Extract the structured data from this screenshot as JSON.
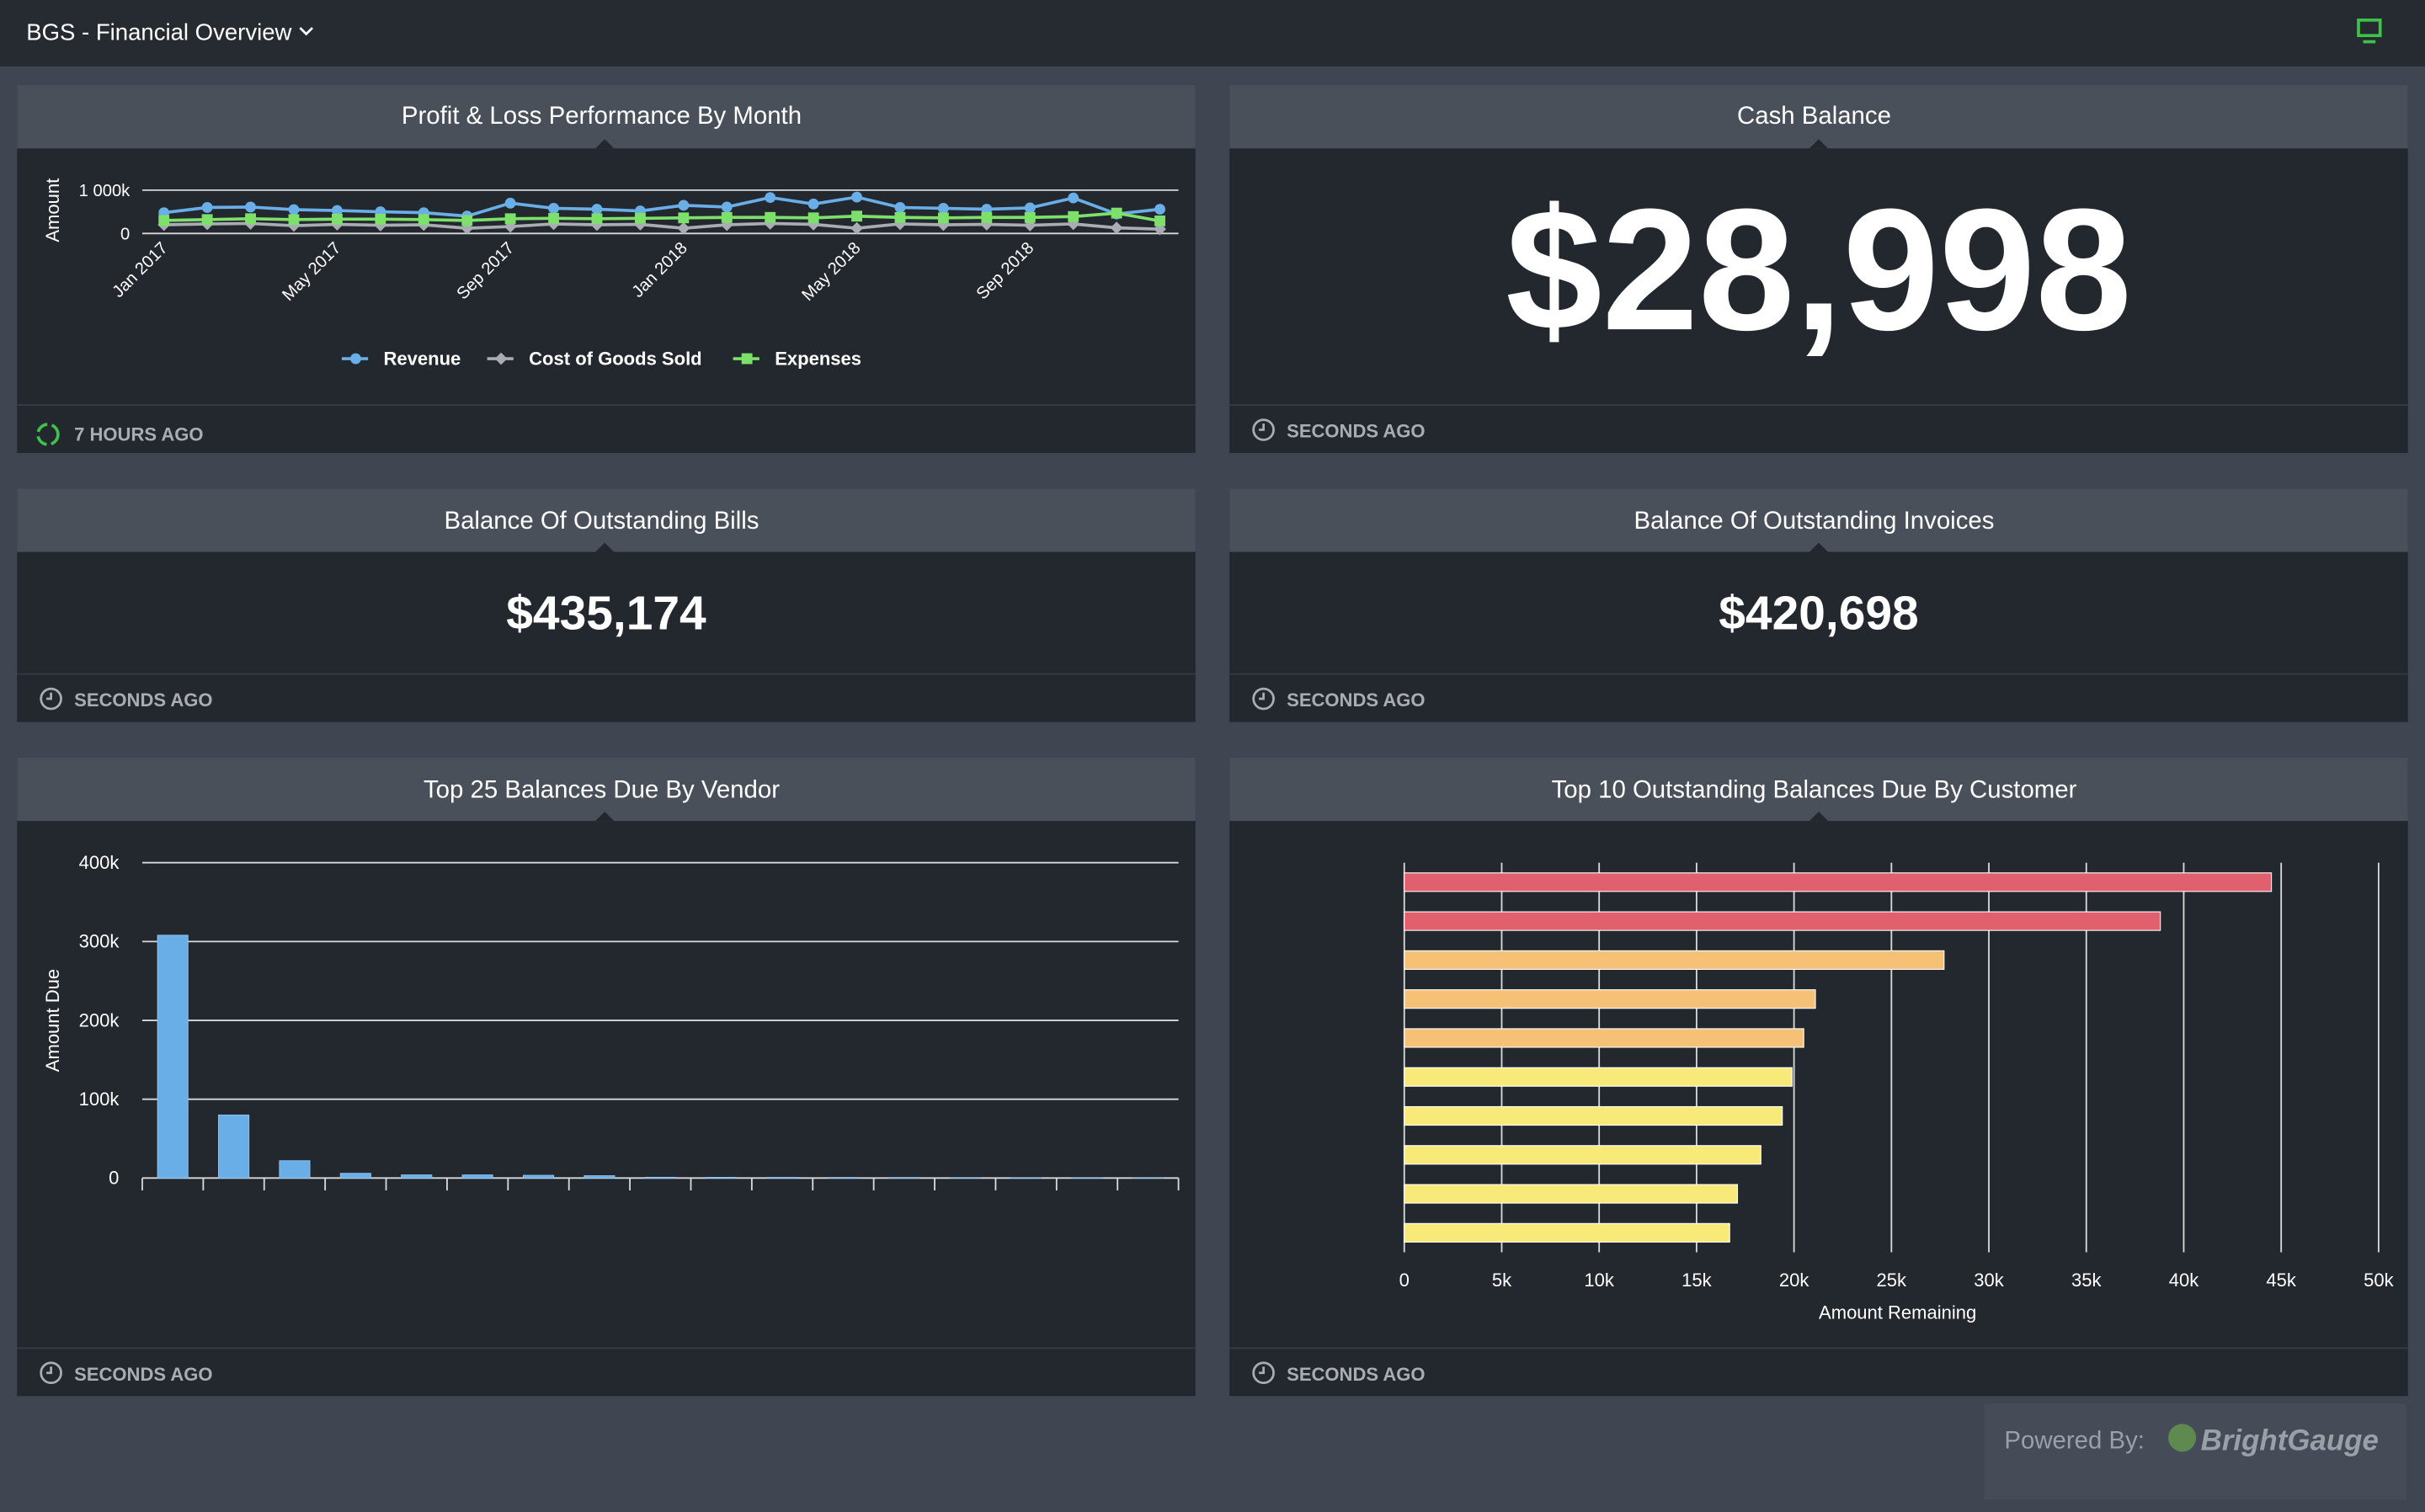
{
  "header": {
    "title": "BGS - Financial Overview"
  },
  "chart_data": [
    {
      "type": "line",
      "title": "Profit & Loss Performance By Month",
      "ylabel": "Amount",
      "categories": [
        "Jan 2017",
        null,
        null,
        null,
        "May 2017",
        null,
        null,
        null,
        "Sep 2017",
        null,
        null,
        null,
        "Jan 2018",
        null,
        null,
        null,
        "May 2018",
        null,
        null,
        null,
        "Sep 2018",
        null,
        null,
        null
      ],
      "series": [
        {
          "name": "Revenue",
          "color": "#6aaee8",
          "marker": "circle",
          "values": [
            480000,
            600000,
            610000,
            550000,
            530000,
            500000,
            480000,
            400000,
            700000,
            580000,
            560000,
            520000,
            650000,
            610000,
            830000,
            680000,
            840000,
            600000,
            580000,
            560000,
            590000,
            820000,
            450000,
            560000
          ]
        },
        {
          "name": "Cost of Goods Sold",
          "color": "#a9adb3",
          "marker": "diamond",
          "values": [
            200000,
            220000,
            230000,
            180000,
            210000,
            190000,
            200000,
            120000,
            160000,
            220000,
            200000,
            210000,
            120000,
            200000,
            230000,
            210000,
            120000,
            220000,
            200000,
            210000,
            190000,
            220000,
            130000,
            100000
          ]
        },
        {
          "name": "Expenses",
          "color": "#7de06a",
          "marker": "square",
          "values": [
            300000,
            320000,
            340000,
            320000,
            330000,
            330000,
            320000,
            300000,
            340000,
            350000,
            340000,
            350000,
            360000,
            370000,
            370000,
            360000,
            400000,
            370000,
            360000,
            370000,
            370000,
            390000,
            470000,
            290000
          ]
        }
      ],
      "ylim": [
        0,
        1000000
      ],
      "yticks": [
        0,
        {
          "value": 1000000,
          "label": "1 000k"
        }
      ],
      "grid": true,
      "legend": "bottom",
      "updated": "7 HOURS AGO"
    },
    {
      "type": "bar",
      "title": "Top 25 Balances Due By Vendor",
      "ylabel": "Amount Due",
      "categories": [
        null,
        null,
        null,
        null,
        null,
        null,
        null,
        null,
        null,
        null,
        null,
        null,
        null,
        null,
        null,
        null,
        null
      ],
      "values": [
        308000,
        80000,
        22000,
        6000,
        4000,
        4000,
        3500,
        3000,
        1000,
        900,
        800,
        700,
        600,
        500,
        400,
        300,
        200
      ],
      "color": "#6aaee8",
      "ylim": [
        0,
        400000
      ],
      "yticks": [
        0,
        {
          "value": 100000,
          "label": "100k"
        },
        {
          "value": 200000,
          "label": "200k"
        },
        {
          "value": 300000,
          "label": "300k"
        },
        {
          "value": 400000,
          "label": "400k"
        }
      ],
      "grid": true,
      "updated": "SECONDS AGO"
    },
    {
      "type": "hbar",
      "title": "Top 10 Outstanding Balances Due By Customer",
      "xlabel": "Amount Remaining",
      "categories": [
        null,
        null,
        null,
        null,
        null,
        null,
        null,
        null,
        null,
        null
      ],
      "values": [
        44500,
        38800,
        27700,
        21100,
        20500,
        19900,
        19400,
        18300,
        17100,
        16700
      ],
      "colors": [
        "#e0606e",
        "#e0606e",
        "#f5c177",
        "#f5c177",
        "#f5c177",
        "#f8ea78",
        "#f8ea78",
        "#f8ea78",
        "#f8ea78",
        "#f8ea78"
      ],
      "xlim": [
        0,
        50000
      ],
      "xticks": [
        0,
        {
          "value": 5000,
          "label": "5k"
        },
        {
          "value": 10000,
          "label": "10k"
        },
        {
          "value": 15000,
          "label": "15k"
        },
        {
          "value": 20000,
          "label": "20k"
        },
        {
          "value": 25000,
          "label": "25k"
        },
        {
          "value": 30000,
          "label": "30k"
        },
        {
          "value": 35000,
          "label": "35k"
        },
        {
          "value": 40000,
          "label": "40k"
        },
        {
          "value": 45000,
          "label": "45k"
        },
        {
          "value": 50000,
          "label": "50k"
        }
      ],
      "grid": true,
      "updated": "SECONDS AGO"
    }
  ],
  "kpis": [
    {
      "title": "Cash Balance",
      "value": "$28,998",
      "updated": "SECONDS AGO"
    },
    {
      "title": "Balance Of Outstanding Bills",
      "value": "$435,174",
      "updated": "SECONDS AGO"
    },
    {
      "title": "Balance Of Outstanding Invoices",
      "value": "$420,698",
      "updated": "SECONDS AGO"
    }
  ],
  "branding": {
    "prefix": "Powered By:",
    "name": "BrightGauge"
  }
}
